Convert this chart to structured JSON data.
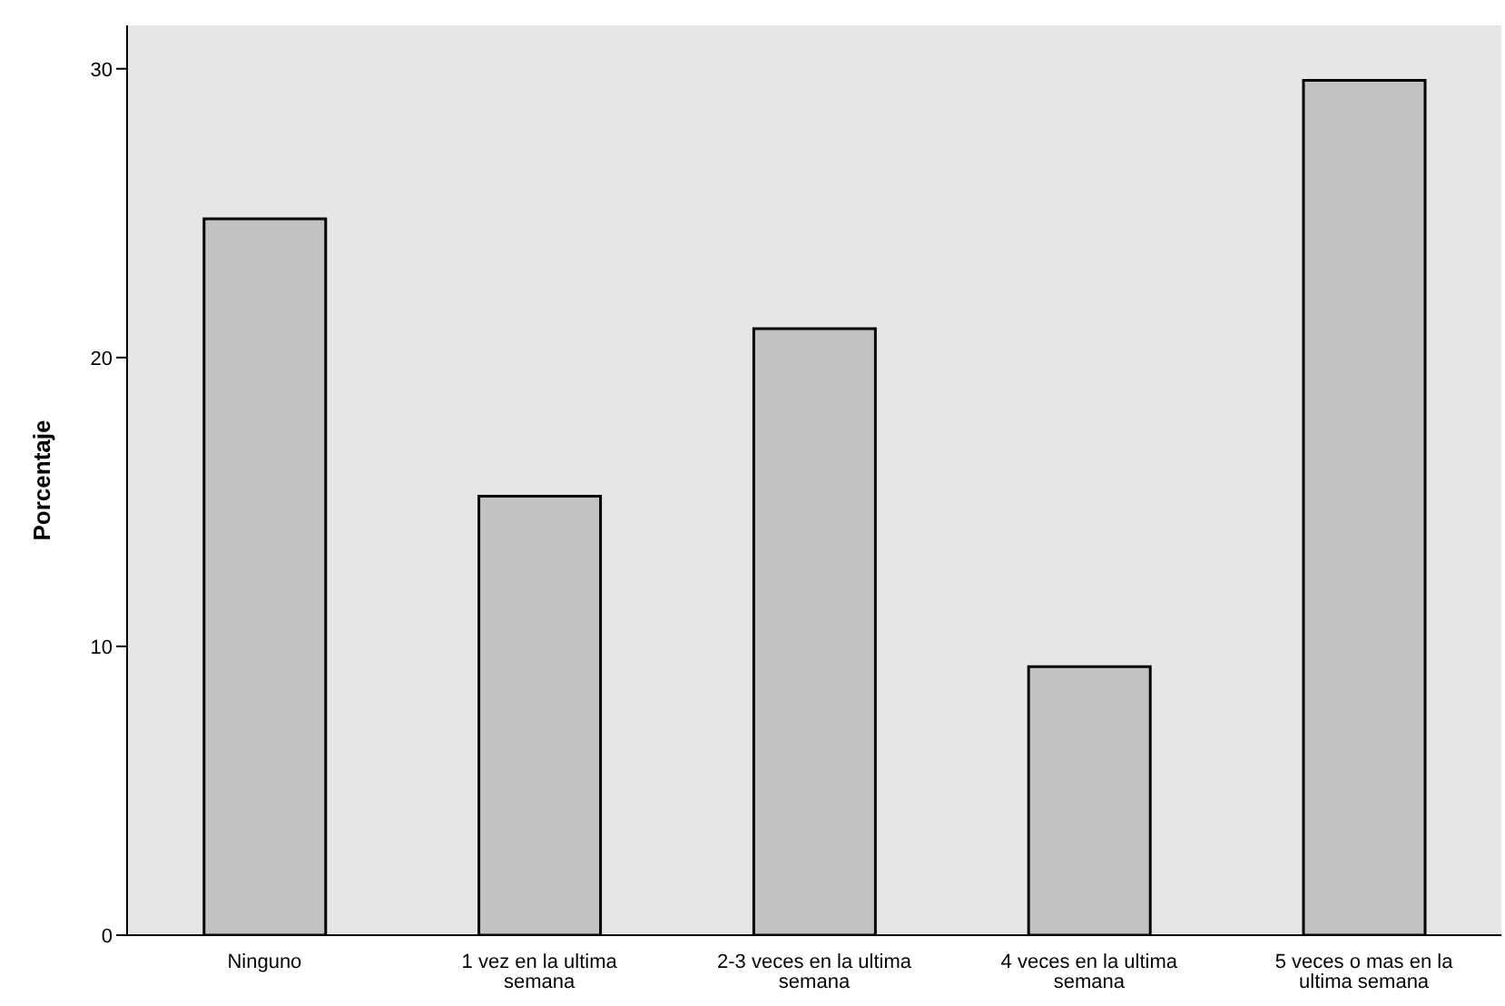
{
  "chart_data": {
    "type": "bar",
    "ylabel": "Porcentaje",
    "categories": [
      "Ninguno",
      "1 vez en la ultima semana",
      "2-3 veces en la ultima semana",
      "4 veces en la ultima semana",
      "5 veces o mas en la ultima semana"
    ],
    "values": [
      24.8,
      15.2,
      21.0,
      9.3,
      29.6
    ],
    "color": "#c2c2c2",
    "ylim": [
      0,
      31.5
    ],
    "yticks": [
      0,
      10,
      20,
      30
    ],
    "grid": false,
    "legend": false
  }
}
